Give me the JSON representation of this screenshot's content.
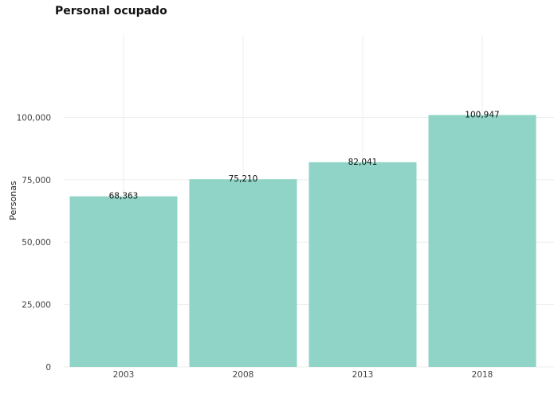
{
  "chart_data": {
    "type": "bar",
    "title": "Personal ocupado",
    "xlabel": "",
    "ylabel": "Personas",
    "categories": [
      "2003",
      "2008",
      "2013",
      "2018"
    ],
    "values": [
      68363,
      75210,
      82041,
      100947
    ],
    "value_labels": [
      "68,363",
      "75,210",
      "82,041",
      "100,947"
    ],
    "ylim": [
      0,
      133000
    ],
    "yticks": [
      0,
      25000,
      50000,
      75000,
      100000
    ],
    "ytick_labels": [
      "0",
      "25,000",
      "50,000",
      "75,000",
      "100,000"
    ],
    "grid": true,
    "bar_color": "#8fd4c6"
  }
}
